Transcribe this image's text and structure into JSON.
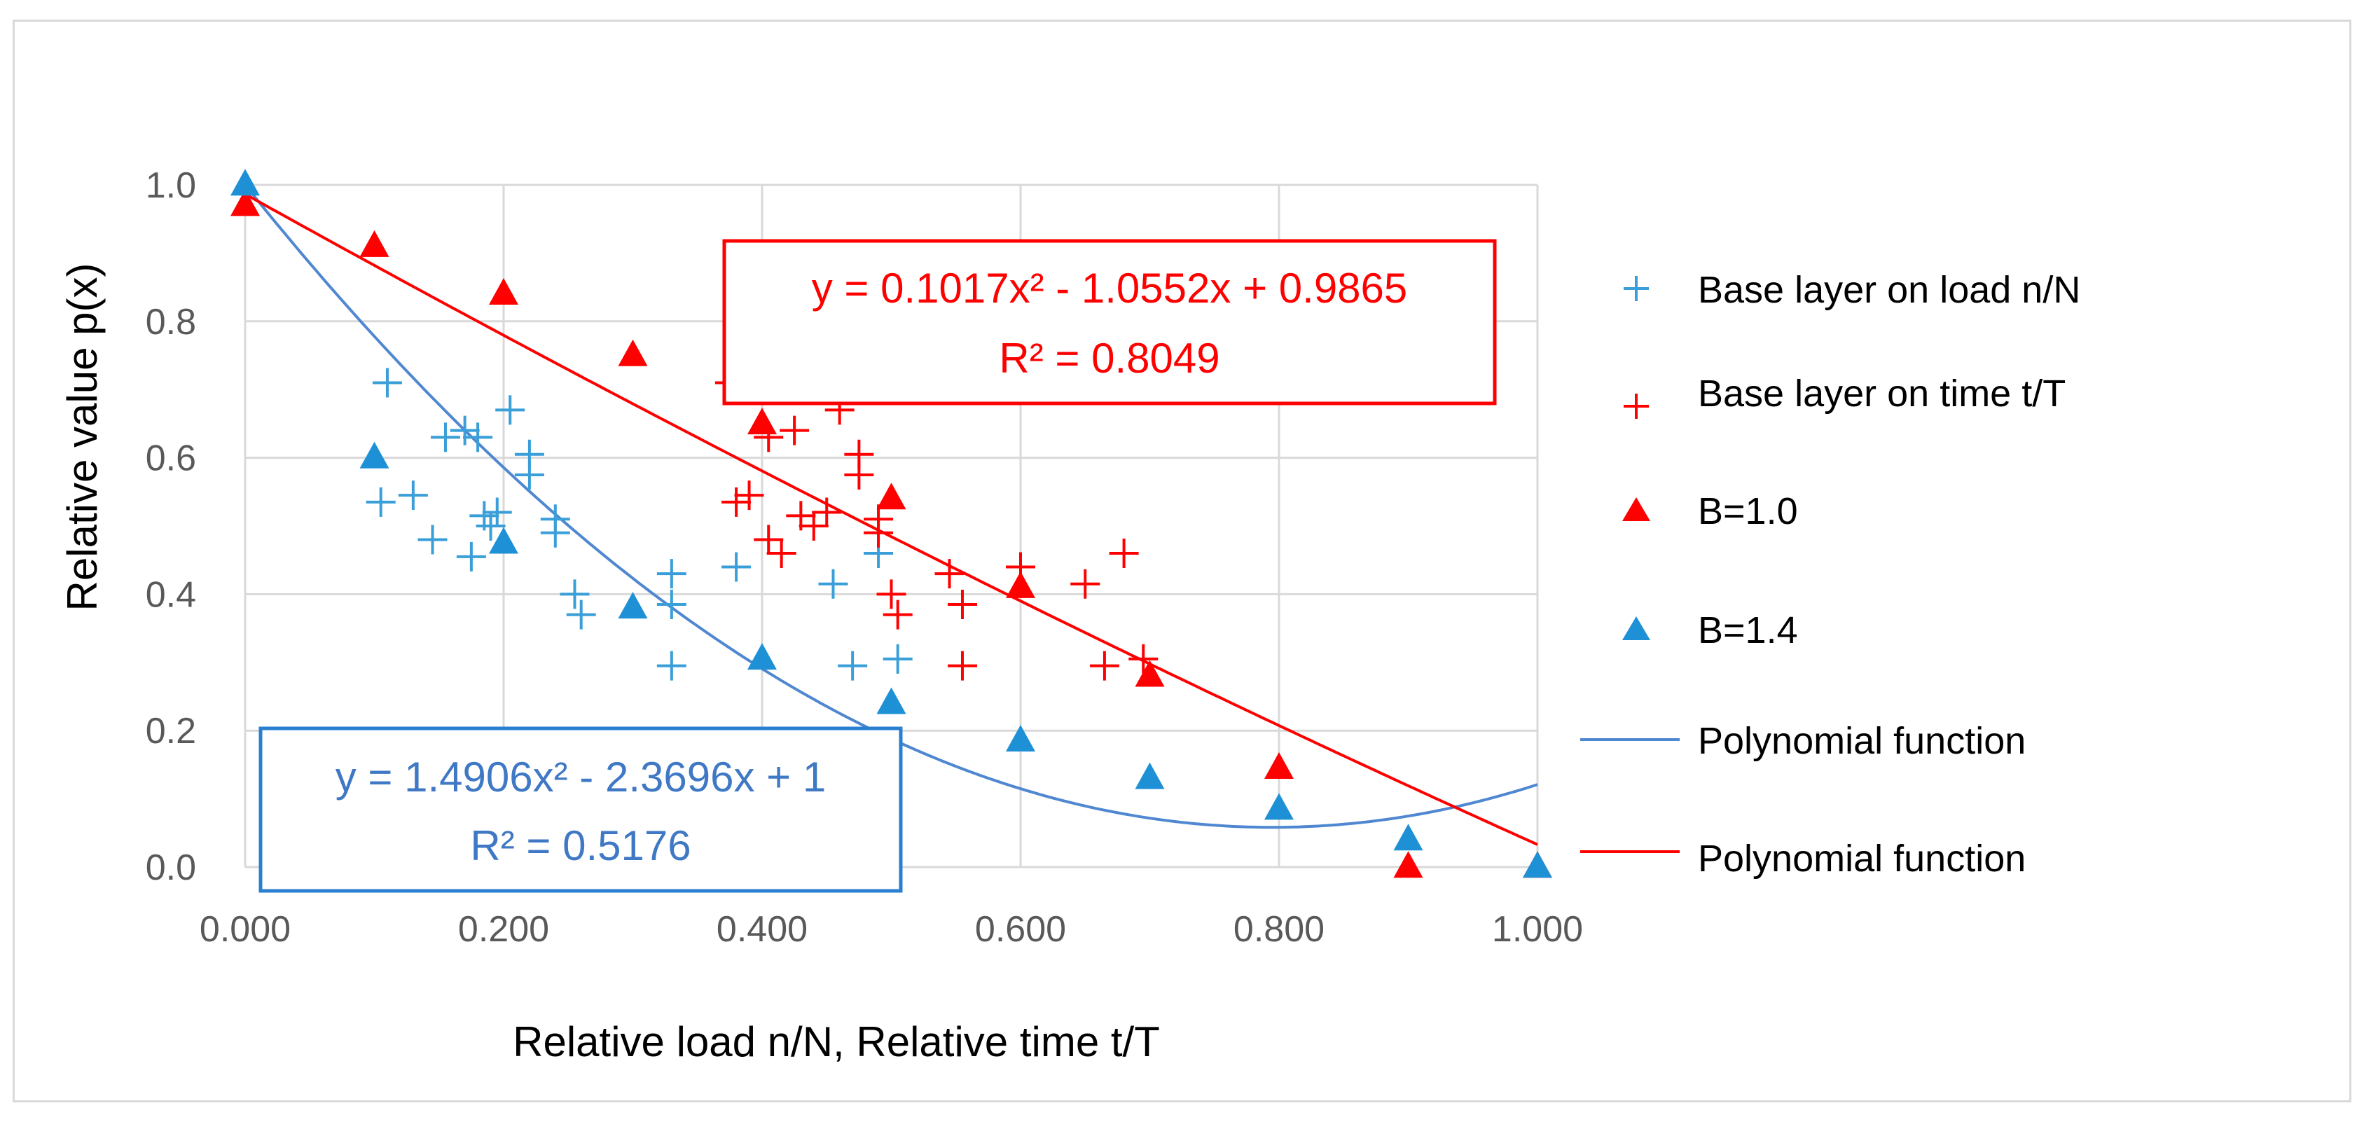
{
  "chart_data": {
    "type": "scatter",
    "xlabel": "Relative load n/N,  Relative time t/T",
    "ylabel": "Relative value p(x)",
    "xlim": [
      0,
      1
    ],
    "ylim": [
      0,
      1
    ],
    "x_ticks": [
      "0.000",
      "0.200",
      "0.400",
      "0.600",
      "0.800",
      "1.000"
    ],
    "y_ticks": [
      "0.0",
      "0.2",
      "0.4",
      "0.6",
      "0.8",
      "1.0"
    ],
    "grid": true,
    "legend_position": "right",
    "series": [
      {
        "name": "Base layer on load n/N",
        "marker": "plus",
        "color": "#3a9fd8",
        "points": [
          [
            0.11,
            0.71
          ],
          [
            0.105,
            0.535
          ],
          [
            0.13,
            0.545
          ],
          [
            0.145,
            0.48
          ],
          [
            0.155,
            0.63
          ],
          [
            0.17,
            0.64
          ],
          [
            0.175,
            0.455
          ],
          [
            0.18,
            0.63
          ],
          [
            0.185,
            0.515
          ],
          [
            0.19,
            0.5
          ],
          [
            0.195,
            0.52
          ],
          [
            0.205,
            0.67
          ],
          [
            0.22,
            0.605
          ],
          [
            0.22,
            0.575
          ],
          [
            0.24,
            0.51
          ],
          [
            0.24,
            0.49
          ],
          [
            0.255,
            0.4
          ],
          [
            0.26,
            0.37
          ],
          [
            0.33,
            0.43
          ],
          [
            0.33,
            0.385
          ],
          [
            0.33,
            0.295
          ],
          [
            0.38,
            0.44
          ],
          [
            0.455,
            0.415
          ],
          [
            0.47,
            0.295
          ],
          [
            0.49,
            0.46
          ],
          [
            0.505,
            0.305
          ]
        ]
      },
      {
        "name": "Base layer on time t/T",
        "marker": "plus",
        "color": "#ff0000",
        "points": [
          [
            0.375,
            0.71
          ],
          [
            0.38,
            0.535
          ],
          [
            0.39,
            0.545
          ],
          [
            0.405,
            0.63
          ],
          [
            0.405,
            0.48
          ],
          [
            0.415,
            0.46
          ],
          [
            0.425,
            0.64
          ],
          [
            0.43,
            0.515
          ],
          [
            0.44,
            0.5
          ],
          [
            0.45,
            0.52
          ],
          [
            0.46,
            0.67
          ],
          [
            0.475,
            0.605
          ],
          [
            0.475,
            0.575
          ],
          [
            0.49,
            0.51
          ],
          [
            0.49,
            0.49
          ],
          [
            0.5,
            0.4
          ],
          [
            0.505,
            0.37
          ],
          [
            0.545,
            0.43
          ],
          [
            0.555,
            0.385
          ],
          [
            0.555,
            0.295
          ],
          [
            0.6,
            0.44
          ],
          [
            0.65,
            0.415
          ],
          [
            0.665,
            0.295
          ],
          [
            0.68,
            0.46
          ],
          [
            0.695,
            0.305
          ]
        ]
      },
      {
        "name": "B=1.0",
        "marker": "triangle",
        "color": "#ff0000",
        "points": [
          [
            0.0,
            0.97
          ],
          [
            0.1,
            0.91
          ],
          [
            0.2,
            0.84
          ],
          [
            0.3,
            0.75
          ],
          [
            0.4,
            0.65
          ],
          [
            0.5,
            0.54
          ],
          [
            0.6,
            0.41
          ],
          [
            0.7,
            0.28
          ],
          [
            0.8,
            0.145
          ],
          [
            0.9,
            0.0
          ],
          [
            1.0,
            0.0
          ]
        ]
      },
      {
        "name": "B=1.4",
        "marker": "triangle",
        "color": "#1e90d6",
        "points": [
          [
            0.0,
            1.0
          ],
          [
            0.1,
            0.6
          ],
          [
            0.2,
            0.475
          ],
          [
            0.3,
            0.38
          ],
          [
            0.4,
            0.305
          ],
          [
            0.5,
            0.24
          ],
          [
            0.6,
            0.185
          ],
          [
            0.7,
            0.13
          ],
          [
            0.8,
            0.085
          ],
          [
            0.9,
            0.04
          ],
          [
            1.0,
            0.0
          ]
        ]
      },
      {
        "name": "Polynomial function",
        "type": "line",
        "color": "#4f87d0",
        "coefficients": [
          1.4906,
          -2.3696,
          1
        ],
        "equation": "y = 1.4906x² - 2.3696x + 1",
        "r2": "R² = 0.5176"
      },
      {
        "name": "Polynomial function",
        "type": "line",
        "color": "#ff0000",
        "coefficients": [
          0.1017,
          -1.0552,
          0.9865
        ],
        "equation": "y = 0.1017x² - 1.0552x + 0.9865",
        "r2": "R² = 0.8049"
      }
    ]
  }
}
